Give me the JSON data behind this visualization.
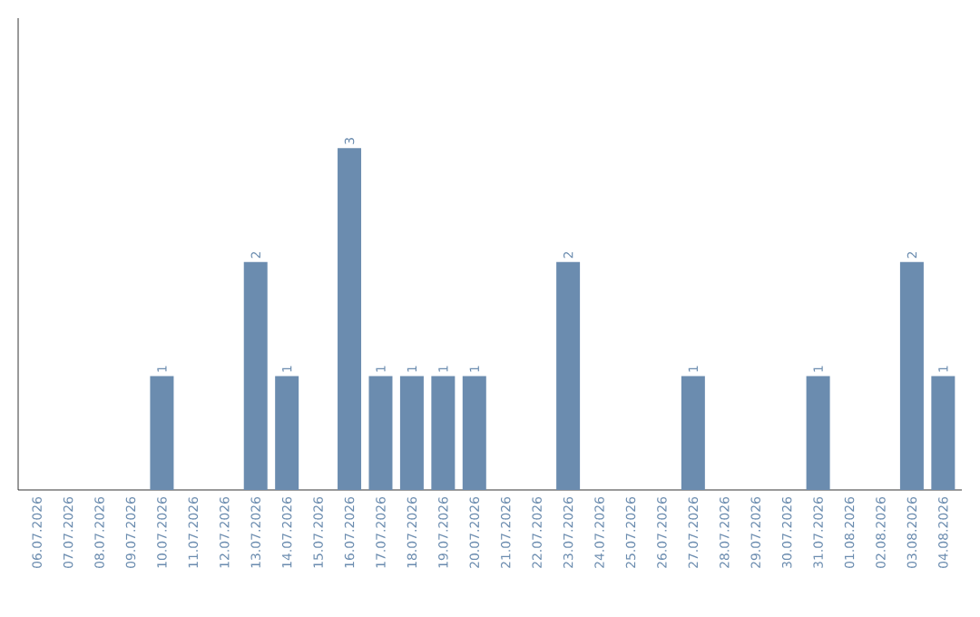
{
  "chart_data": {
    "type": "bar",
    "categories": [
      "06.07.2026",
      "07.07.2026",
      "08.07.2026",
      "09.07.2026",
      "10.07.2026",
      "11.07.2026",
      "12.07.2026",
      "13.07.2026",
      "14.07.2026",
      "15.07.2026",
      "16.07.2026",
      "17.07.2026",
      "18.07.2026",
      "19.07.2026",
      "20.07.2026",
      "21.07.2026",
      "22.07.2026",
      "23.07.2026",
      "24.07.2026",
      "25.07.2026",
      "26.07.2026",
      "27.07.2026",
      "28.07.2026",
      "29.07.2026",
      "30.07.2026",
      "31.07.2026",
      "01.08.2026",
      "02.08.2026",
      "03.08.2026",
      "04.08.2026"
    ],
    "values": [
      0,
      0,
      0,
      0,
      1,
      0,
      0,
      2,
      1,
      0,
      3,
      1,
      1,
      1,
      1,
      0,
      0,
      2,
      0,
      0,
      0,
      1,
      0,
      0,
      0,
      1,
      0,
      0,
      2,
      1
    ],
    "value_labels": [
      null,
      null,
      null,
      null,
      "1",
      null,
      null,
      "2",
      "1",
      null,
      "3",
      "1",
      "1",
      "1",
      "1",
      null,
      null,
      "2",
      null,
      null,
      null,
      "1",
      null,
      null,
      null,
      "1",
      null,
      null,
      "2",
      "1"
    ],
    "color": "#6b8caf",
    "tick_labels": "x"
  }
}
